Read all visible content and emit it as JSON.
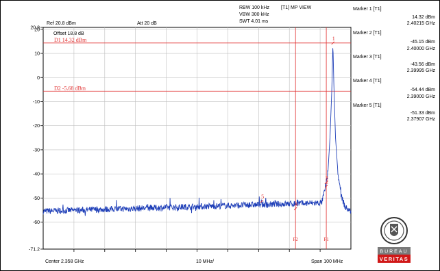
{
  "settings": {
    "rbw": "RBW 100 kHz",
    "vbw": "VBW 300 kHz",
    "swt": "SWT 4.01 ms",
    "trace_mode": "[T1] MP VIEW",
    "ref": "Ref 20.8 dBm",
    "att": "Att  20 dB",
    "offset": "Offset 18.8 dB"
  },
  "footer": {
    "center": "Center 2.358 GHz",
    "division": "10 MHz/",
    "span": "Span 100 MHz"
  },
  "markers": [
    {
      "title": "Marker 1 [T1]",
      "level": "14.32 dBm",
      "freq": "2.40215 GHz"
    },
    {
      "title": "Marker 2 [T1]",
      "level": "-45.15 dBm",
      "freq": "2.40000 GHz"
    },
    {
      "title": "Marker 3 [T1]",
      "level": "-43.56 dBm",
      "freq": "2.39995 GHz"
    },
    {
      "title": "Marker 4 [T1]",
      "level": "-54.44 dBm",
      "freq": "2.39000 GHz"
    },
    {
      "title": "Marker 5 [T1]",
      "level": "-51.33 dBm",
      "freq": "2.37907 GHz"
    }
  ],
  "logo": {
    "text": "BUREAU VERITAS"
  },
  "chart_data": {
    "type": "line",
    "ylim": [
      -71.2,
      20.8
    ],
    "xlim": [
      2.308,
      2.408
    ],
    "yticks": [
      {
        "value": 20.8,
        "label": "20.8"
      },
      {
        "value": 20,
        "label": "20"
      },
      {
        "value": 10,
        "label": "10"
      },
      {
        "value": 0,
        "label": "0"
      },
      {
        "value": -10,
        "label": "-10"
      },
      {
        "value": -20,
        "label": "-20"
      },
      {
        "value": -30,
        "label": "-30"
      },
      {
        "value": -40,
        "label": "-40"
      },
      {
        "value": -50,
        "label": "-50"
      },
      {
        "value": -60,
        "label": "-60"
      },
      {
        "value": -71.2,
        "label": "-71.2"
      }
    ],
    "hlines": [
      {
        "label": "D1 14.32 dBm",
        "value": 14.32,
        "color": "#e03030"
      },
      {
        "label": "D2 -5.68 dBm",
        "value": -5.68,
        "color": "#e03030"
      }
    ],
    "vlines": [
      {
        "label": "F2",
        "x": 2.39,
        "color": "#e03030"
      },
      {
        "label": "F1",
        "x": 2.4,
        "color": "#e03030"
      }
    ],
    "marker_points": [
      {
        "label": "1",
        "x": 2.40215,
        "y": 14.32
      },
      {
        "label": "2",
        "x": 2.4,
        "y": -45.15
      },
      {
        "label": "3",
        "x": 2.39995,
        "y": -43.56
      },
      {
        "label": "4",
        "x": 2.39,
        "y": -54.44
      },
      {
        "label": "5",
        "x": 2.37907,
        "y": -51.33
      }
    ],
    "series": [
      {
        "color": "#1f3fb8",
        "noise_floor": -55.5,
        "x": [
          2.308,
          2.3985,
          2.3995,
          2.4005,
          2.4012,
          2.4018,
          2.40215,
          2.4025,
          2.403,
          2.4038,
          2.4048,
          2.4062,
          2.408
        ],
        "y": [
          -55.5,
          -52,
          -47,
          -40,
          -25,
          -5,
          14.32,
          -5,
          -25,
          -40,
          -49,
          -54,
          -55.5
        ]
      }
    ]
  }
}
